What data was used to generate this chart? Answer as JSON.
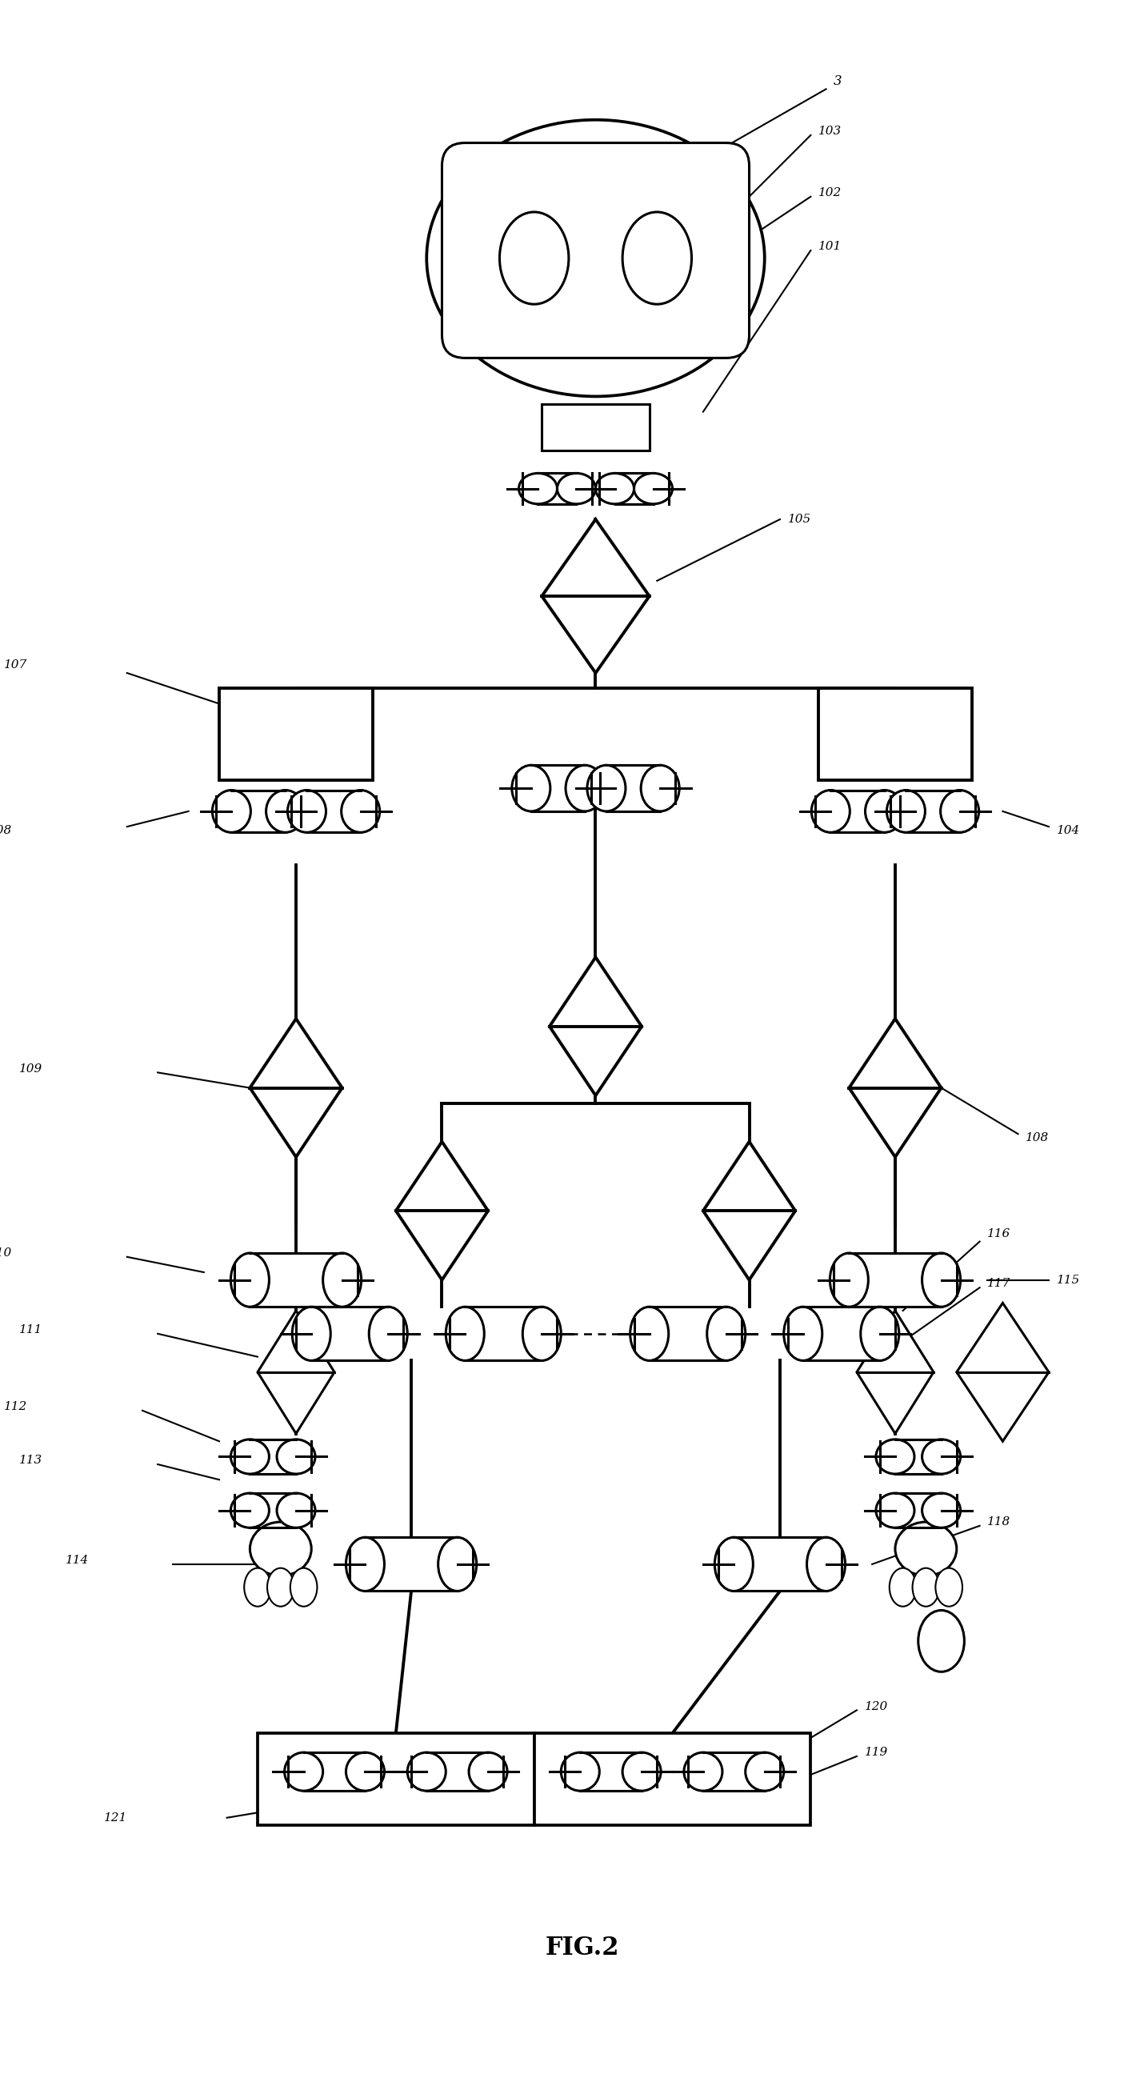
{
  "title": "FIG.2",
  "bg": "#ffffff",
  "lc": "#000000",
  "lw": 2.2,
  "lw_thin": 1.5,
  "lw_thick": 2.8
}
